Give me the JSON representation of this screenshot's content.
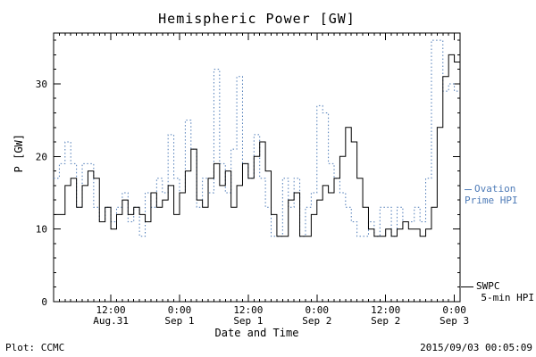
{
  "title": "Hemispheric Power [GW]",
  "xlabel": "Date and Time",
  "ylabel": "P [GW]",
  "footer": {
    "left": "Plot: CCMC",
    "right": "2015/09/03 00:05:09"
  },
  "legend": {
    "ovation_line1": "Ovation",
    "ovation_line2": "Prime HPI",
    "swpc_line1": "SWPC",
    "swpc_line2": "5-min HPI"
  },
  "colors": {
    "ovation": "#4f7cb8",
    "swpc": "#000000",
    "axis": "#000000"
  },
  "chart_data": {
    "type": "line",
    "title": "Hemispheric Power [GW]",
    "xlabel": "Date and Time",
    "ylabel": "P [GW]",
    "x_unit": "hours since 2015-08-31 00:00 UT",
    "xlim": [
      2,
      73
    ],
    "ylim": [
      0,
      37
    ],
    "grid": false,
    "legend_position": "right-outside",
    "x_ticks": [
      {
        "pos": 12,
        "line1": "12:00",
        "line2": "Aug.31"
      },
      {
        "pos": 24,
        "line1": "0:00",
        "line2": "Sep 1"
      },
      {
        "pos": 36,
        "line1": "12:00",
        "line2": "Sep 1"
      },
      {
        "pos": 48,
        "line1": "0:00",
        "line2": "Sep 2"
      },
      {
        "pos": 60,
        "line1": "12:00",
        "line2": "Sep 2"
      },
      {
        "pos": 72,
        "line1": "0:00",
        "line2": "Sep 3"
      }
    ],
    "y_ticks": [
      0,
      10,
      20,
      30
    ],
    "series": [
      {
        "name": "Ovation Prime HPI",
        "style": "dotted",
        "color": "#4f7cb8",
        "interpolation": "step-after",
        "x": [
          2,
          3,
          4,
          5,
          6,
          7,
          8,
          9,
          10,
          11,
          12,
          13,
          14,
          15,
          16,
          17,
          18,
          19,
          20,
          21,
          22,
          23,
          24,
          25,
          26,
          27,
          28,
          29,
          30,
          31,
          32,
          33,
          34,
          35,
          36,
          37,
          38,
          39,
          40,
          41,
          42,
          43,
          44,
          45,
          46,
          47,
          48,
          49,
          50,
          51,
          52,
          53,
          54,
          55,
          56,
          57,
          58,
          59,
          60,
          61,
          62,
          63,
          64,
          65,
          66,
          67,
          68,
          69,
          70,
          71,
          72,
          73
        ],
        "y": [
          17,
          19,
          22,
          19,
          13,
          19,
          19,
          13,
          11,
          13,
          11,
          13,
          15,
          11,
          13,
          9,
          15,
          13,
          17,
          15,
          23,
          17,
          15,
          25,
          21,
          13,
          17,
          15,
          32,
          19,
          15,
          21,
          31,
          19,
          17,
          23,
          17,
          13,
          9,
          9,
          17,
          13,
          17,
          9,
          13,
          15,
          27,
          26,
          19,
          17,
          15,
          13,
          11,
          9,
          9,
          11,
          9,
          13,
          13,
          9,
          13,
          11,
          11,
          13,
          11,
          17,
          36,
          36,
          29,
          30,
          29,
          29
        ]
      },
      {
        "name": "SWPC 5-min HPI",
        "style": "solid",
        "color": "#000000",
        "interpolation": "step-after",
        "x": [
          2,
          3,
          4,
          5,
          6,
          7,
          8,
          9,
          10,
          11,
          12,
          13,
          14,
          15,
          16,
          17,
          18,
          19,
          20,
          21,
          22,
          23,
          24,
          25,
          26,
          27,
          28,
          29,
          30,
          31,
          32,
          33,
          34,
          35,
          36,
          37,
          38,
          39,
          40,
          41,
          42,
          43,
          44,
          45,
          46,
          47,
          48,
          49,
          50,
          51,
          52,
          53,
          54,
          55,
          56,
          57,
          58,
          59,
          60,
          61,
          62,
          63,
          64,
          65,
          66,
          67,
          68,
          69,
          70,
          71,
          72,
          73
        ],
        "y": [
          12,
          12,
          16,
          17,
          13,
          16,
          18,
          17,
          11,
          13,
          10,
          12,
          14,
          12,
          13,
          12,
          11,
          15,
          13,
          14,
          16,
          12,
          15,
          18,
          21,
          14,
          13,
          17,
          19,
          16,
          18,
          13,
          16,
          19,
          17,
          20,
          22,
          18,
          12,
          9,
          9,
          14,
          15,
          9,
          9,
          12,
          14,
          16,
          15,
          17,
          20,
          24,
          22,
          17,
          13,
          10,
          9,
          9,
          10,
          9,
          10,
          11,
          10,
          10,
          9,
          10,
          13,
          24,
          31,
          34,
          33,
          31
        ]
      }
    ]
  }
}
